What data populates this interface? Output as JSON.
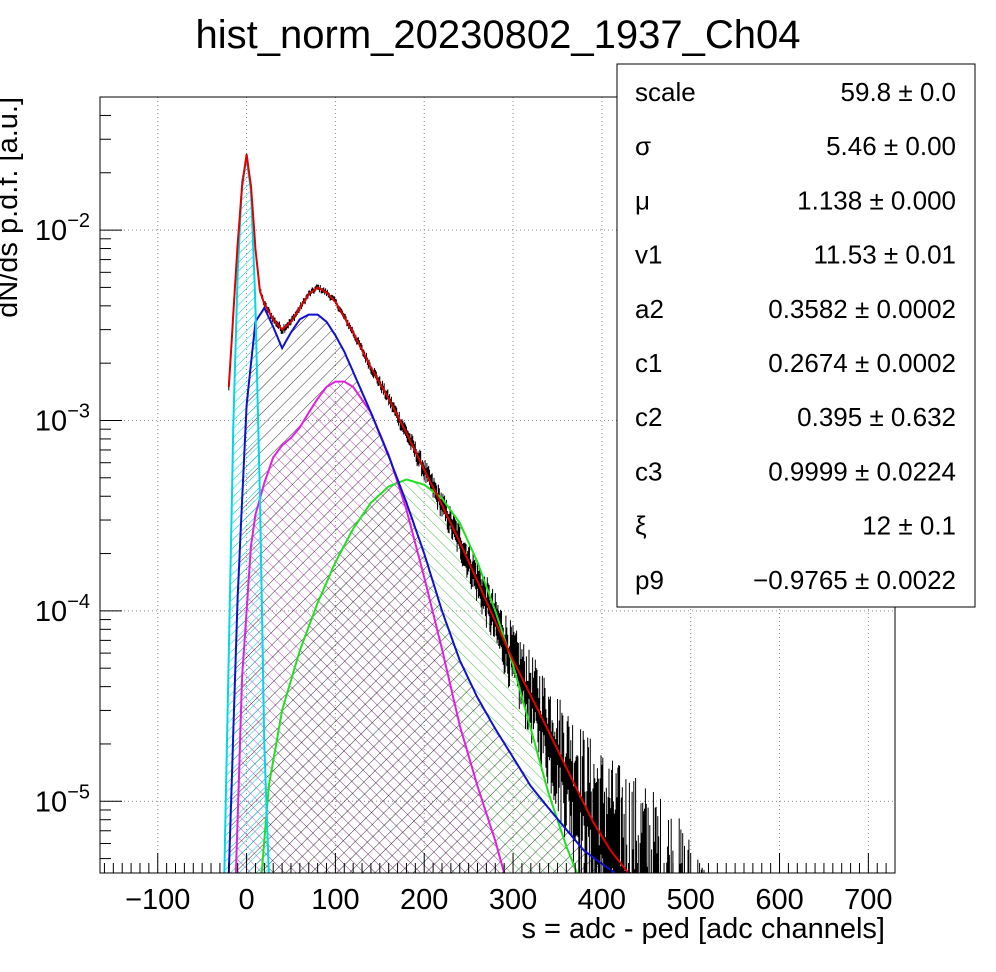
{
  "chart_data": {
    "type": "line",
    "title": "hist_norm_20230802_1937_Ch04",
    "xlabel": "s = adc - ped [adc channels]",
    "ylabel": "dN/ds p.d.f. [a.u.]",
    "log_y": true,
    "xlim": [
      -165,
      730
    ],
    "ylim": [
      4.2e-06,
      0.05
    ],
    "grid": true,
    "x_ticks": [
      "−100",
      "0",
      "100",
      "200",
      "300",
      "400",
      "500",
      "600",
      "700"
    ],
    "y_ticks": [
      {
        "base": "10",
        "exp": "−5",
        "value": 1e-05
      },
      {
        "base": "10",
        "exp": "−4",
        "value": 0.0001
      },
      {
        "base": "10",
        "exp": "−3",
        "value": 0.001
      },
      {
        "base": "10",
        "exp": "−2",
        "value": 0.01
      }
    ],
    "series": [
      {
        "key": "data",
        "color": "#000000",
        "kind": "histogram"
      },
      {
        "key": "total_fit",
        "color": "#e00000",
        "kind": "line",
        "x": [
          -20,
          -10,
          -5,
          0,
          5,
          10,
          15,
          20,
          30,
          40,
          50,
          60,
          70,
          80,
          90,
          100,
          120,
          140,
          160,
          180,
          200,
          220,
          240,
          260,
          280,
          300,
          330,
          360,
          390,
          410,
          420,
          430
        ],
        "y": [
          0.0015,
          0.0085,
          0.017,
          0.025,
          0.017,
          0.008,
          0.0048,
          0.0041,
          0.0034,
          0.003,
          0.0033,
          0.0039,
          0.0046,
          0.005,
          0.0047,
          0.0042,
          0.0029,
          0.0019,
          0.0013,
          0.00086,
          0.00055,
          0.00036,
          0.00023,
          0.000143,
          8.8e-05,
          5.5e-05,
          2.9e-05,
          1.5e-05,
          7.8e-06,
          5.5e-06,
          4.8e-06,
          4.2e-06
        ]
      },
      {
        "key": "pedestal",
        "color": "#00d8e8",
        "kind": "filled",
        "x": [
          -25,
          -20,
          -15,
          -10,
          -5,
          0,
          5,
          10,
          15,
          20,
          25
        ],
        "y": [
          4.2e-06,
          6e-05,
          0.0009,
          0.006,
          0.018,
          0.024,
          0.016,
          0.004,
          0.0004,
          2e-05,
          4.2e-06
        ]
      },
      {
        "key": "single_pe",
        "color": "#1010d0",
        "kind": "filled",
        "x": [
          -20,
          -10,
          0,
          10,
          20,
          30,
          40,
          50,
          60,
          70,
          80,
          90,
          100,
          110,
          120,
          140,
          160,
          180,
          200,
          220,
          240,
          260,
          280,
          300,
          320,
          340,
          360,
          380,
          400,
          415
        ],
        "y": [
          4.2e-06,
          0.00012,
          0.0012,
          0.0033,
          0.0039,
          0.0031,
          0.0024,
          0.0029,
          0.0034,
          0.0036,
          0.0036,
          0.0033,
          0.0028,
          0.0023,
          0.0018,
          0.0011,
          0.00065,
          0.00037,
          0.0002,
          0.0001,
          5.5e-05,
          3.5e-05,
          2.4e-05,
          1.7e-05,
          1.2e-05,
          9.2e-06,
          7.1e-06,
          5.5e-06,
          4.7e-06,
          4.2e-06
        ]
      },
      {
        "key": "two_pe",
        "color": "#e020e0",
        "kind": "filled",
        "x": [
          -12,
          -5,
          5,
          10,
          20,
          30,
          40,
          50,
          60,
          70,
          80,
          90,
          100,
          110,
          120,
          140,
          160,
          180,
          200,
          220,
          240,
          260,
          280,
          290
        ],
        "y": [
          4.2e-06,
          4.5e-05,
          0.00022,
          0.00032,
          0.00047,
          0.00064,
          0.00074,
          0.00081,
          0.00092,
          0.0011,
          0.0013,
          0.0015,
          0.0016,
          0.0016,
          0.0015,
          0.0011,
          0.00066,
          0.00034,
          0.00015,
          6.3e-05,
          2.5e-05,
          1.2e-05,
          6.2e-06,
          4.2e-06
        ]
      },
      {
        "key": "three_pe",
        "color": "#20e020",
        "kind": "filled",
        "x": [
          17,
          25,
          40,
          60,
          80,
          100,
          120,
          140,
          160,
          180,
          200,
          220,
          240,
          260,
          280,
          300,
          320,
          340,
          360,
          372
        ],
        "y": [
          4.2e-06,
          1.2e-05,
          3e-05,
          6.2e-05,
          0.00011,
          0.00018,
          0.00027,
          0.00037,
          0.00045,
          0.00049,
          0.00046,
          0.00039,
          0.00029,
          0.00018,
          0.0001,
          5.2e-05,
          2.4e-05,
          1.1e-05,
          5.8e-06,
          4.2e-06
        ]
      }
    ]
  },
  "stats": [
    {
      "name": "scale",
      "value": "59.8",
      "error": "0.0"
    },
    {
      "name": "σ",
      "value": "5.46",
      "error": "0.00"
    },
    {
      "name": "μ",
      "value": "1.138",
      "error": "0.000"
    },
    {
      "name": "v1",
      "value": "11.53",
      "error": "0.01"
    },
    {
      "name": "a2",
      "value": "0.3582",
      "error": "0.0002"
    },
    {
      "name": "c1",
      "value": "0.2674",
      "error": "0.0002"
    },
    {
      "name": "c2",
      "value": "0.395",
      "error": "0.632"
    },
    {
      "name": "c3",
      "value": "0.9999",
      "error": "0.0224"
    },
    {
      "name": "ξ",
      "value": "12",
      "error": "0.1"
    },
    {
      "name": "p9",
      "value": "−0.9765",
      "error": "0.0022"
    }
  ],
  "stats_sep": "±"
}
